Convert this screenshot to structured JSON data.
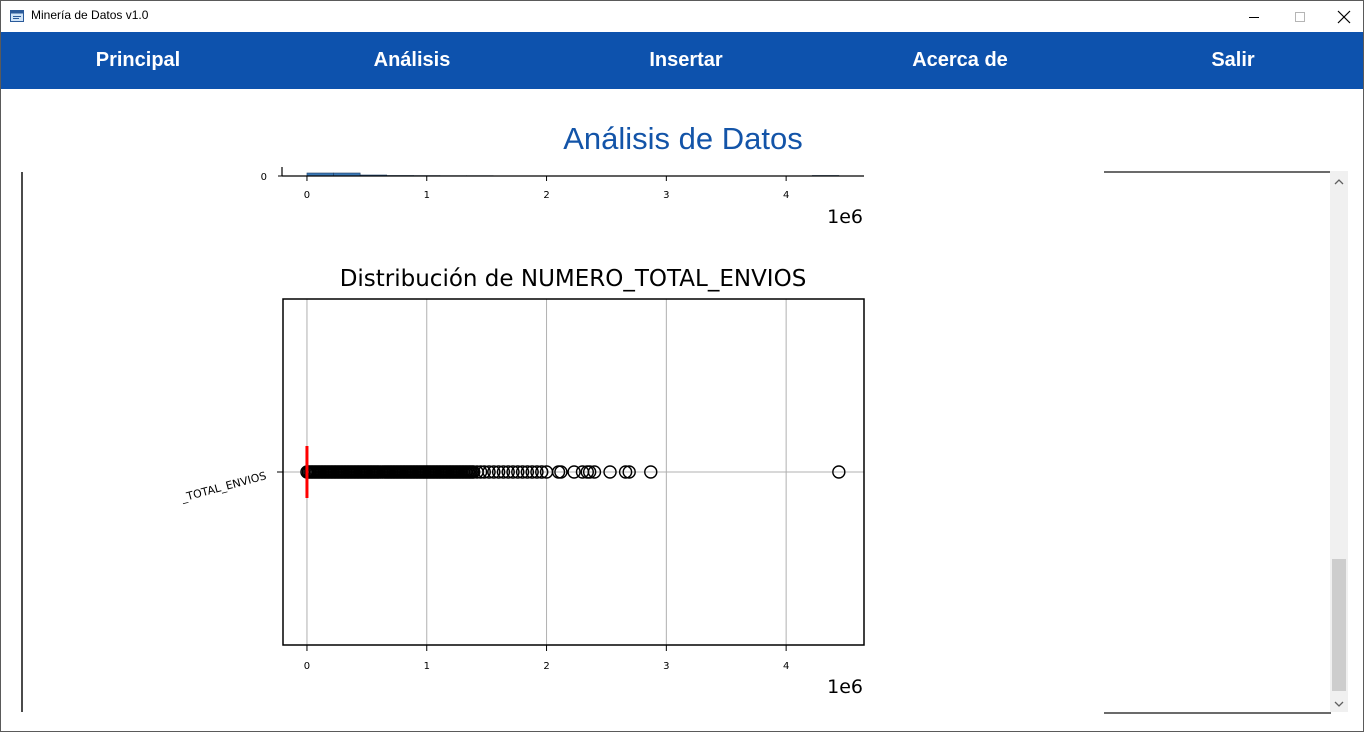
{
  "window": {
    "title": "Minería de Datos v1.0",
    "icon": "app-window-icon",
    "controls": [
      "minimize-icon",
      "maximize-icon",
      "close-icon"
    ]
  },
  "menu": {
    "items": [
      {
        "label": "Principal"
      },
      {
        "label": "Análisis"
      },
      {
        "label": "Insertar"
      },
      {
        "label": "Acerca de"
      },
      {
        "label": "Salir"
      }
    ],
    "background": "#0d52ad",
    "text_color": "#ffffff"
  },
  "page": {
    "heading": "Análisis de Datos",
    "heading_color": "#1354a8"
  },
  "chart_data": [
    {
      "type": "bar",
      "note_visible": "bottom of a histogram, partially scrolled out of view",
      "y_tick_visible": "0",
      "x_ticks": [
        "0",
        "1",
        "2",
        "3",
        "4"
      ],
      "x_offset_text": "1e6",
      "bar_color": "#3a78b5",
      "xlim": [
        -200000,
        4650000
      ]
    },
    {
      "type": "boxplot",
      "title": "Distribución de NUMERO_TOTAL_ENVIOS",
      "orientation": "horizontal",
      "category_label": "_TOTAL_ENVIOS",
      "x_ticks": [
        "0",
        "1",
        "2",
        "3",
        "4"
      ],
      "x_offset_text": "1e6",
      "xlim": [
        -200000,
        4650000
      ],
      "grid": true,
      "median": 0,
      "median_color": "#ff0000",
      "dense_outlier_range": [
        0,
        1400000
      ],
      "outliers": [
        1420000,
        1450000,
        1480000,
        1520000,
        1560000,
        1600000,
        1640000,
        1680000,
        1720000,
        1760000,
        1800000,
        1840000,
        1880000,
        1920000,
        1960000,
        2000000,
        2100000,
        2120000,
        2230000,
        2300000,
        2340000,
        2360000,
        2400000,
        2530000,
        2660000,
        2690000,
        2870000,
        4440000
      ]
    }
  ],
  "scrollbar": {
    "up_icon": "scroll-up-icon",
    "down_icon": "scroll-down-icon",
    "position_fraction": 0.95
  }
}
